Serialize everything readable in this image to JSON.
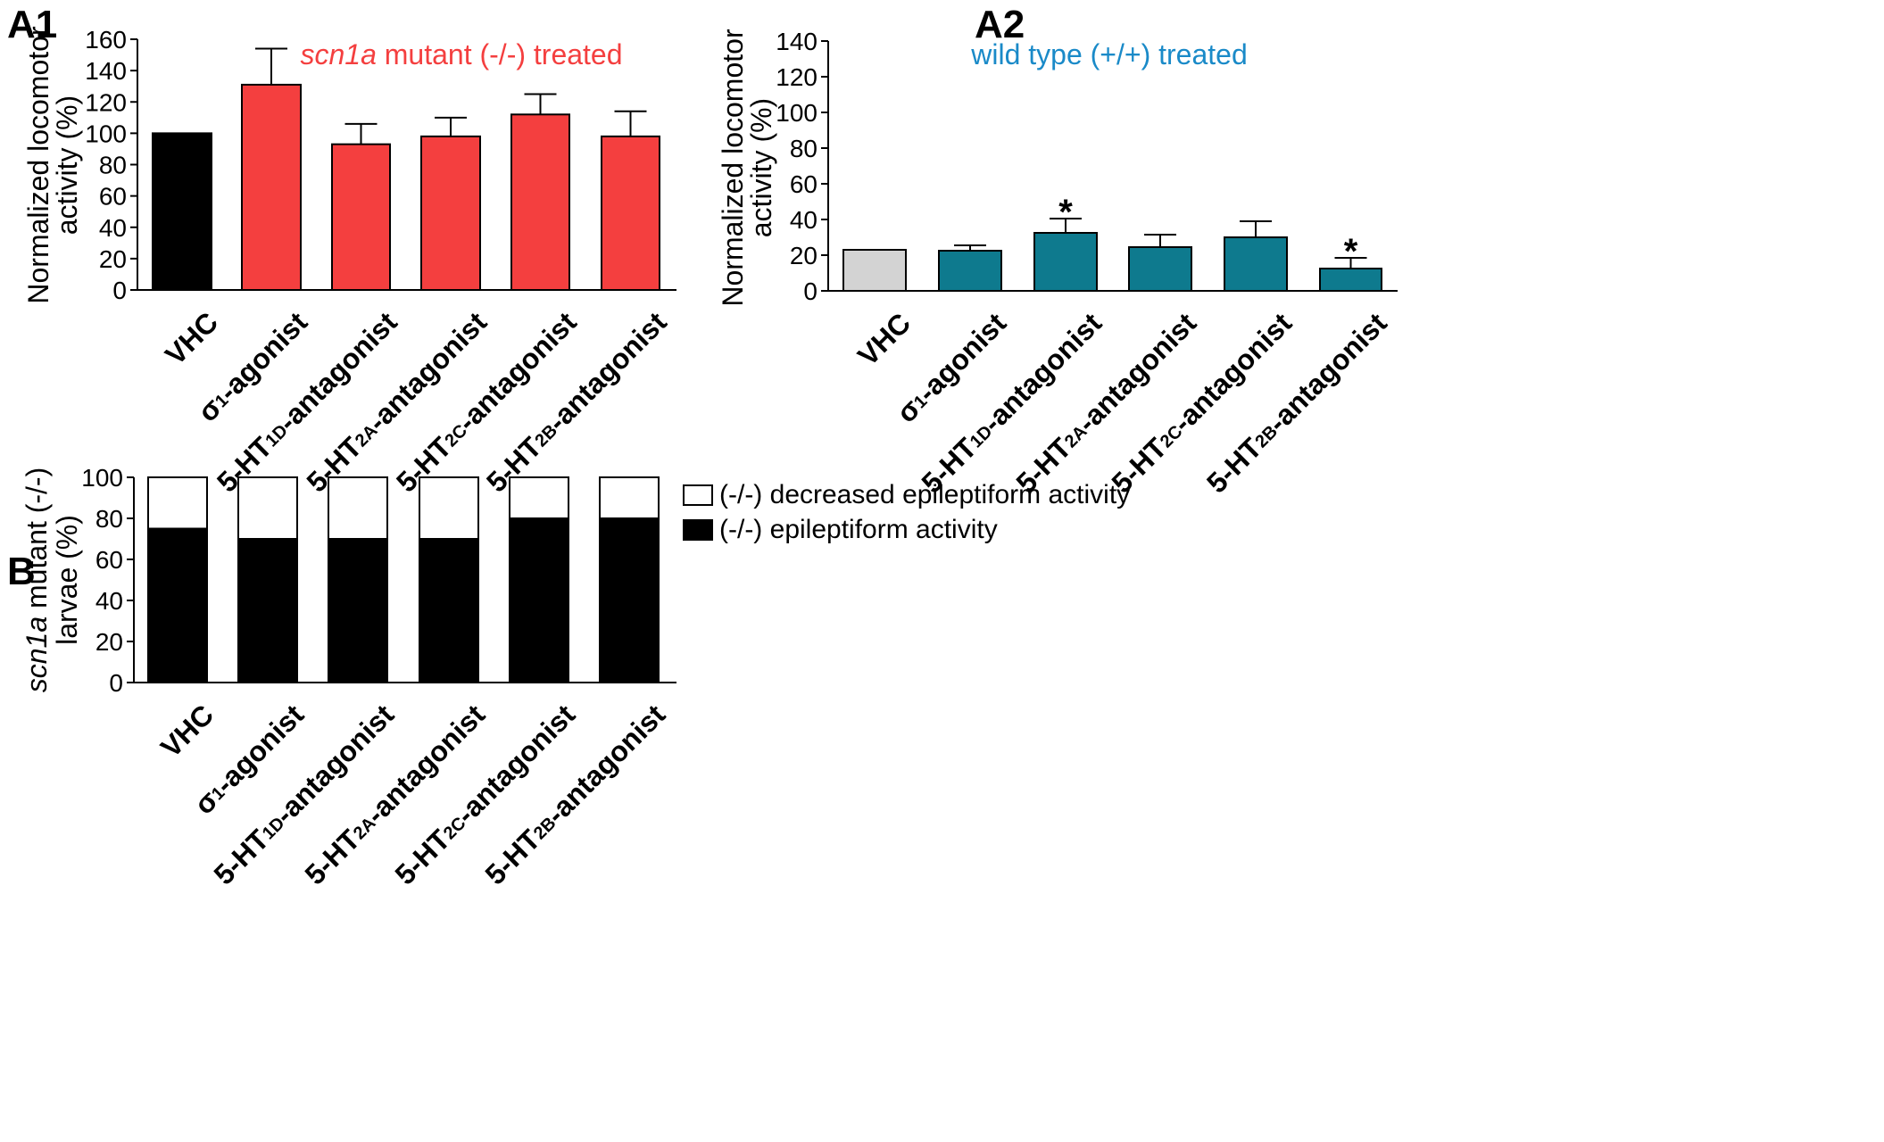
{
  "panels": {
    "a1": "A1",
    "a2": "A2",
    "b": "B"
  },
  "chart_data": [
    {
      "id": "A1",
      "type": "bar",
      "title_parts": [
        {
          "text": "scn1a",
          "italic": true
        },
        {
          "text": " mutant  (-/-) treated",
          "italic": false
        }
      ],
      "title_color": "#f43f3f",
      "ylabel_lines": [
        "Normalized locomotor",
        "activity (%)"
      ],
      "ylim": [
        0,
        160
      ],
      "yticks": [
        0,
        20,
        40,
        60,
        80,
        100,
        120,
        140,
        160
      ],
      "categories": [
        {
          "main": "VHC",
          "sub": "",
          "suffix": ""
        },
        {
          "main": "σ",
          "sub": "1",
          "suffix": "-agonist"
        },
        {
          "main": "5-HT",
          "sub": "1D",
          "suffix": "-antagonist"
        },
        {
          "main": "5-HT",
          "sub": "2A",
          "suffix": "-antagonist"
        },
        {
          "main": "5-HT",
          "sub": "2C",
          "suffix": "-antagonist"
        },
        {
          "main": "5-HT",
          "sub": "2B",
          "suffix": "-antagonist"
        }
      ],
      "values": [
        100,
        131,
        93,
        98,
        112,
        98
      ],
      "errors": [
        0,
        23,
        13,
        12,
        13,
        16
      ],
      "colors": [
        "#000000",
        "#f43f3f",
        "#f43f3f",
        "#f43f3f",
        "#f43f3f",
        "#f43f3f"
      ],
      "significance": [
        "",
        "",
        "",
        "",
        "",
        ""
      ]
    },
    {
      "id": "A2",
      "type": "bar",
      "title_parts": [
        {
          "text": "wild type (+/+) treated",
          "italic": false
        }
      ],
      "title_color": "#1a8ac8",
      "ylabel_lines": [
        "Normalized locomotor",
        "activity (%)"
      ],
      "ylim": [
        0,
        140
      ],
      "yticks": [
        0,
        20,
        40,
        60,
        80,
        100,
        120,
        140
      ],
      "categories": [
        {
          "main": "VHC",
          "sub": "",
          "suffix": ""
        },
        {
          "main": "σ",
          "sub": "1",
          "suffix": "-agonist"
        },
        {
          "main": "5-HT",
          "sub": "1D",
          "suffix": "-antagonist"
        },
        {
          "main": "5-HT",
          "sub": "2A",
          "suffix": "-antagonist"
        },
        {
          "main": "5-HT",
          "sub": "2C",
          "suffix": "-antagonist"
        },
        {
          "main": "5-HT",
          "sub": "2B",
          "suffix": "-antagonist"
        }
      ],
      "values": [
        23,
        22.5,
        32.5,
        24.5,
        30,
        12.5
      ],
      "errors": [
        0,
        3,
        8,
        7,
        9,
        6
      ],
      "colors": [
        "#d3d3d3",
        "#0e7a8e",
        "#0e7a8e",
        "#0e7a8e",
        "#0e7a8e",
        "#0e7a8e"
      ],
      "significance": [
        "",
        "",
        "*",
        "",
        "",
        "*"
      ]
    },
    {
      "id": "B",
      "type": "stacked-bar",
      "ylabel_parts": [
        [
          {
            "text": "scn1a",
            "italic": true
          },
          {
            "text": " mutant (-/-)",
            "italic": false
          }
        ],
        [
          {
            "text": "larvae (%)",
            "italic": false
          }
        ]
      ],
      "ylim": [
        0,
        100
      ],
      "yticks": [
        0,
        20,
        40,
        60,
        80,
        100
      ],
      "categories": [
        {
          "main": "VHC",
          "sub": "",
          "suffix": ""
        },
        {
          "main": "σ",
          "sub": "1",
          "suffix": "-agonist"
        },
        {
          "main": "5-HT",
          "sub": "1D",
          "suffix": "-antagonist"
        },
        {
          "main": "5-HT",
          "sub": "2A",
          "suffix": "-antagonist"
        },
        {
          "main": "5-HT",
          "sub": "2C",
          "suffix": "-antagonist"
        },
        {
          "main": "5-HT",
          "sub": "2B",
          "suffix": "-antagonist"
        }
      ],
      "series": [
        {
          "name": "(-/-) epileptiform activity",
          "color": "#000000",
          "values": [
            75,
            70,
            70,
            70,
            80,
            80
          ]
        },
        {
          "name": "(-/-) decreased epileptiform activity",
          "color": "#ffffff",
          "values": [
            25,
            30,
            30,
            30,
            20,
            20
          ]
        }
      ],
      "legend_order": [
        1,
        0
      ],
      "legend_position": "right"
    }
  ]
}
